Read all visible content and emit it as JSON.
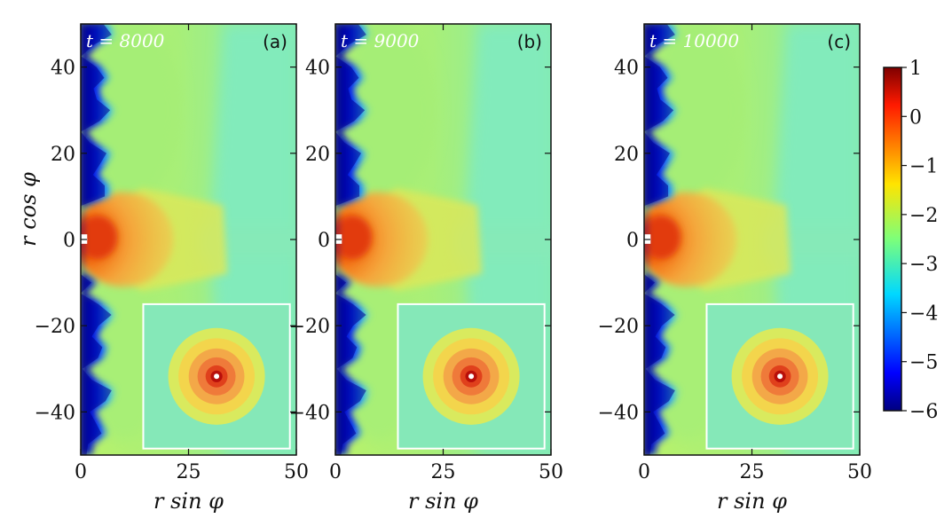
{
  "chart_data": {
    "type": "heatmap",
    "panels": [
      {
        "label": "(a)",
        "time_label": "t = 8000"
      },
      {
        "label": "(b)",
        "time_label": "t = 9000"
      },
      {
        "label": "(c)",
        "time_label": "t = 10000"
      }
    ],
    "xlabel": "r  sin φ",
    "ylabel": "r  cos φ",
    "xlim": [
      0,
      50
    ],
    "ylim": [
      -50,
      50
    ],
    "xticks": [
      "0",
      "25",
      "50"
    ],
    "yticks": [
      "40",
      "20",
      "0",
      "−20",
      "−40"
    ],
    "xtick_values": [
      0,
      25,
      50
    ],
    "ytick_values": [
      40,
      20,
      0,
      -20,
      -40
    ],
    "colorbar": {
      "range": [
        -6,
        1
      ],
      "ticks": [
        "1",
        "0",
        "−1",
        "−2",
        "−3",
        "−4",
        "−5",
        "−6"
      ],
      "tick_values": [
        1,
        0,
        -1,
        -2,
        -3,
        -4,
        -5,
        -6
      ],
      "colormap": "jet"
    },
    "inset": {
      "shown": true
    }
  }
}
